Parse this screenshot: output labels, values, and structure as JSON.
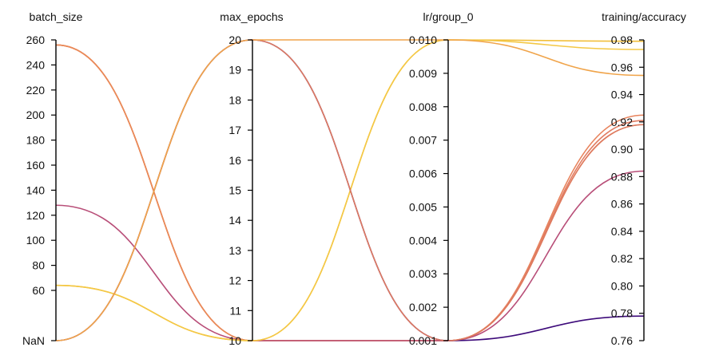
{
  "chart_data": {
    "type": "parallel_coordinates",
    "axes": [
      {
        "key": "batch_size",
        "label": "batch_size",
        "range": [
          60,
          260
        ],
        "ticks": [
          {
            "label": "260",
            "value": 260
          },
          {
            "label": "240",
            "value": 240
          },
          {
            "label": "220",
            "value": 220
          },
          {
            "label": "200",
            "value": 200
          },
          {
            "label": "180",
            "value": 180
          },
          {
            "label": "160",
            "value": 160
          },
          {
            "label": "140",
            "value": 140
          },
          {
            "label": "120",
            "value": 120
          },
          {
            "label": "100",
            "value": 100
          },
          {
            "label": "80",
            "value": 80
          },
          {
            "label": "60",
            "value": 60
          },
          {
            "label": "NaN",
            "value": "NaN"
          }
        ]
      },
      {
        "key": "max_epochs",
        "label": "max_epochs",
        "range": [
          10,
          20
        ],
        "ticks": [
          {
            "label": "20",
            "value": 20
          },
          {
            "label": "19",
            "value": 19
          },
          {
            "label": "18",
            "value": 18
          },
          {
            "label": "17",
            "value": 17
          },
          {
            "label": "16",
            "value": 16
          },
          {
            "label": "15",
            "value": 15
          },
          {
            "label": "14",
            "value": 14
          },
          {
            "label": "13",
            "value": 13
          },
          {
            "label": "12",
            "value": 12
          },
          {
            "label": "11",
            "value": 11
          },
          {
            "label": "10",
            "value": 10
          }
        ]
      },
      {
        "key": "lr",
        "label": "lr/group_0",
        "range": [
          0.001,
          0.01
        ],
        "ticks": [
          {
            "label": "0.010",
            "value": 0.01
          },
          {
            "label": "0.009",
            "value": 0.009
          },
          {
            "label": "0.008",
            "value": 0.008
          },
          {
            "label": "0.007",
            "value": 0.007
          },
          {
            "label": "0.006",
            "value": 0.006
          },
          {
            "label": "0.005",
            "value": 0.005
          },
          {
            "label": "0.004",
            "value": 0.004
          },
          {
            "label": "0.003",
            "value": 0.003
          },
          {
            "label": "0.002",
            "value": 0.002
          },
          {
            "label": "0.001",
            "value": 0.001
          }
        ]
      },
      {
        "key": "accuracy",
        "label": "training/accuracy",
        "range": [
          0.76,
          0.98
        ],
        "ticks": [
          {
            "label": "0.98",
            "value": 0.98
          },
          {
            "label": "0.96",
            "value": 0.96
          },
          {
            "label": "0.94",
            "value": 0.94
          },
          {
            "label": "0.92",
            "value": 0.92
          },
          {
            "label": "0.90",
            "value": 0.9
          },
          {
            "label": "0.88",
            "value": 0.88
          },
          {
            "label": "0.86",
            "value": 0.86
          },
          {
            "label": "0.84",
            "value": 0.84
          },
          {
            "label": "0.82",
            "value": 0.82
          },
          {
            "label": "0.80",
            "value": 0.8
          },
          {
            "label": "0.78",
            "value": 0.78
          },
          {
            "label": "0.76",
            "value": 0.76
          }
        ]
      }
    ],
    "runs": [
      {
        "batch_size": 256,
        "max_epochs": 10,
        "lr": 0.001,
        "accuracy": 0.925,
        "color": "#e8845e"
      },
      {
        "batch_size": 256,
        "max_epochs": 10,
        "lr": 0.001,
        "accuracy": 0.921,
        "color": "#e17d63"
      },
      {
        "batch_size": 256,
        "max_epochs": 10,
        "lr": 0.001,
        "accuracy": 0.918,
        "color": "#ea8a57"
      },
      {
        "batch_size": 128,
        "max_epochs": 10,
        "lr": 0.001,
        "accuracy": 0.884,
        "color": "#b84e78"
      },
      {
        "batch_size": 64,
        "max_epochs": 10,
        "lr": 0.01,
        "accuracy": 0.979,
        "color": "#f2bf3b"
      },
      {
        "batch_size": 64,
        "max_epochs": 10,
        "lr": 0.01,
        "accuracy": 0.973,
        "color": "#f4c845"
      },
      {
        "batch_size": "NaN",
        "max_epochs": 20,
        "lr": 0.001,
        "accuracy": 0.778,
        "color": "#3d0a7a"
      },
      {
        "batch_size": "NaN",
        "max_epochs": 20,
        "lr": 0.001,
        "accuracy": 0.918,
        "color": "#de7a60"
      },
      {
        "batch_size": "NaN",
        "max_epochs": 20,
        "lr": 0.01,
        "accuracy": 0.954,
        "color": "#f0a44a"
      }
    ]
  }
}
